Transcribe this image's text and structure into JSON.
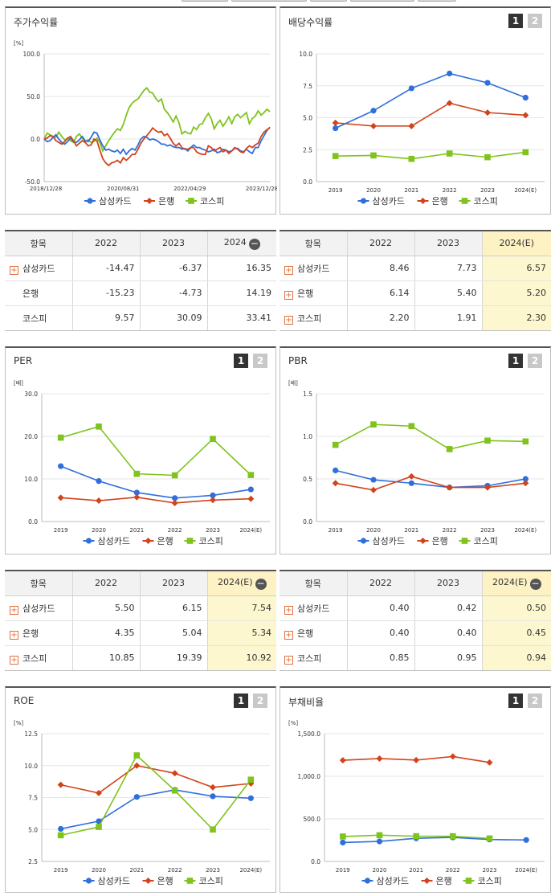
{
  "colors": {
    "samsung": "#2f6fdb",
    "bank": "#d2431b",
    "kospi": "#7fc31c"
  },
  "legend": {
    "samsung": "삼성카드",
    "bank": "은행",
    "kospi": "코스피"
  },
  "pager": {
    "page1": "1",
    "page2": "2"
  },
  "panels": {
    "price": {
      "title": "주가수익률",
      "unit": "[%]"
    },
    "dividend": {
      "title": "배당수익률",
      "unit": ""
    },
    "per": {
      "title": "PER",
      "unit": "[배]"
    },
    "pbr": {
      "title": "PBR",
      "unit": "[배]"
    },
    "roe": {
      "title": "ROE",
      "unit": "[%]"
    },
    "debt": {
      "title": "부채비율",
      "unit": "[%]"
    }
  },
  "tables": {
    "price": {
      "headers": [
        "항목",
        "2022",
        "2023",
        "2024"
      ],
      "minus": "−",
      "highlight": false,
      "rows": [
        {
          "name": "삼성카드",
          "plus": true,
          "values": [
            "-14.47",
            "-6.37",
            "16.35"
          ]
        },
        {
          "name": "은행",
          "plus": false,
          "values": [
            "-15.23",
            "-4.73",
            "14.19"
          ]
        },
        {
          "name": "코스피",
          "plus": false,
          "values": [
            "9.57",
            "30.09",
            "33.41"
          ]
        }
      ]
    },
    "dividend": {
      "headers": [
        "항목",
        "2022",
        "2023",
        "2024(E)"
      ],
      "minus": "",
      "highlight": true,
      "rows": [
        {
          "name": "삼성카드",
          "plus": true,
          "values": [
            "8.46",
            "7.73",
            "6.57"
          ]
        },
        {
          "name": "은행",
          "plus": true,
          "values": [
            "6.14",
            "5.40",
            "5.20"
          ]
        },
        {
          "name": "코스피",
          "plus": true,
          "values": [
            "2.20",
            "1.91",
            "2.30"
          ]
        }
      ]
    },
    "per": {
      "headers": [
        "항목",
        "2022",
        "2023",
        "2024(E)"
      ],
      "minus": "−",
      "highlight": true,
      "rows": [
        {
          "name": "삼성카드",
          "plus": true,
          "values": [
            "5.50",
            "6.15",
            "7.54"
          ]
        },
        {
          "name": "은행",
          "plus": true,
          "values": [
            "4.35",
            "5.04",
            "5.34"
          ]
        },
        {
          "name": "코스피",
          "plus": true,
          "values": [
            "10.85",
            "19.39",
            "10.92"
          ]
        }
      ]
    },
    "pbr": {
      "headers": [
        "항목",
        "2022",
        "2023",
        "2024(E)"
      ],
      "minus": "−",
      "highlight": true,
      "rows": [
        {
          "name": "삼성카드",
          "plus": true,
          "values": [
            "0.40",
            "0.42",
            "0.50"
          ]
        },
        {
          "name": "은행",
          "plus": true,
          "values": [
            "0.40",
            "0.40",
            "0.45"
          ]
        },
        {
          "name": "코스피",
          "plus": true,
          "values": [
            "0.85",
            "0.95",
            "0.94"
          ]
        }
      ]
    }
  },
  "chart_data": [
    {
      "id": "price",
      "type": "line",
      "xlabel": "",
      "ylabel": "[%]",
      "ylim": [
        -50,
        100
      ],
      "yticks": [
        "100.0",
        "50.0",
        "0.0",
        "-50.0"
      ],
      "xticklabels": [
        "2018/12/28",
        "2020/08/31",
        "2022/04/29",
        "2023/12/28"
      ],
      "series": [
        {
          "name": "삼성카드",
          "values": [
            0,
            -3,
            -2,
            2,
            5,
            0,
            -4,
            -6,
            -3,
            1,
            -3,
            -4,
            -1,
            3,
            -2,
            -3,
            2,
            8,
            7,
            -1,
            -8,
            -13,
            -12,
            -14,
            -15,
            -13,
            -17,
            -12,
            -18,
            -14,
            -11,
            -13,
            -7,
            0,
            3,
            2,
            -1,
            0,
            -1,
            -3,
            -6,
            -6,
            -8,
            -7,
            -9,
            -10,
            -10,
            -12,
            -11,
            -14,
            -10,
            -7,
            -10,
            -10,
            -12,
            -13,
            -15,
            -14,
            -12,
            -16,
            -15,
            -12,
            -13,
            -15,
            -14,
            -11,
            -11,
            -14,
            -15,
            -12,
            -15,
            -17,
            -10,
            -10,
            -2,
            4,
            10,
            14
          ]
        },
        {
          "name": "은행",
          "values": [
            0,
            1,
            4,
            3,
            -2,
            -4,
            -6,
            -3,
            1,
            3,
            -2,
            -8,
            -5,
            -2,
            -4,
            -8,
            -7,
            0,
            -2,
            -13,
            -23,
            -28,
            -31,
            -28,
            -27,
            -25,
            -28,
            -22,
            -25,
            -22,
            -18,
            -18,
            -12,
            -5,
            0,
            4,
            8,
            13,
            10,
            8,
            9,
            4,
            6,
            1,
            -5,
            -8,
            -5,
            -10,
            -12,
            -12,
            -10,
            -10,
            -15,
            -17,
            -18,
            -18,
            -8,
            -10,
            -14,
            -12,
            -10,
            -15,
            -13,
            -17,
            -14,
            -10,
            -12,
            -15,
            -16,
            -11,
            -8,
            -10,
            -7,
            -5,
            3,
            8,
            11,
            13
          ]
        },
        {
          "name": "코스피",
          "values": [
            0,
            7,
            5,
            3,
            2,
            8,
            3,
            -1,
            1,
            -2,
            -4,
            3,
            6,
            1,
            -3,
            -1,
            -4,
            -3,
            1,
            -4,
            -14,
            -8,
            -2,
            3,
            8,
            12,
            10,
            17,
            28,
            37,
            42,
            45,
            47,
            52,
            57,
            60,
            55,
            54,
            48,
            44,
            47,
            35,
            31,
            26,
            20,
            27,
            19,
            6,
            9,
            7,
            6,
            14,
            11,
            17,
            18,
            25,
            30,
            24,
            12,
            18,
            22,
            15,
            20,
            26,
            18,
            26,
            29,
            25,
            28,
            31,
            18,
            24,
            27,
            33,
            28,
            31,
            35,
            32
          ]
        }
      ]
    },
    {
      "id": "dividend",
      "type": "line",
      "xlabel": "",
      "ylabel": "",
      "ylim": [
        0,
        10
      ],
      "yticks": [
        "10.0",
        "7.5",
        "5.0",
        "2.5",
        "0.0"
      ],
      "categories": [
        "2019",
        "2020",
        "2021",
        "2022",
        "2023",
        "2024(E)"
      ],
      "series": [
        {
          "name": "삼성카드",
          "values": [
            4.18,
            5.55,
            7.3,
            8.46,
            7.73,
            6.57
          ]
        },
        {
          "name": "은행",
          "values": [
            4.6,
            4.35,
            4.35,
            6.14,
            5.4,
            5.2
          ]
        },
        {
          "name": "코스피",
          "values": [
            2.0,
            2.05,
            1.78,
            2.2,
            1.91,
            2.3
          ]
        }
      ]
    },
    {
      "id": "per",
      "type": "line",
      "xlabel": "",
      "ylabel": "[배]",
      "ylim": [
        0,
        30
      ],
      "yticks": [
        "30.0",
        "20.0",
        "10.0",
        "0.0"
      ],
      "categories": [
        "2019",
        "2020",
        "2021",
        "2022",
        "2023",
        "2024(E)"
      ],
      "series": [
        {
          "name": "삼성카드",
          "values": [
            13.0,
            9.5,
            6.8,
            5.5,
            6.15,
            7.54
          ]
        },
        {
          "name": "은행",
          "values": [
            5.6,
            4.9,
            5.7,
            4.35,
            5.04,
            5.34
          ]
        },
        {
          "name": "코스피",
          "values": [
            19.7,
            22.3,
            11.2,
            10.85,
            19.39,
            10.92
          ]
        }
      ]
    },
    {
      "id": "pbr",
      "type": "line",
      "xlabel": "",
      "ylabel": "[배]",
      "ylim": [
        0,
        1.5
      ],
      "yticks": [
        "1.5",
        "1.0",
        "0.5",
        "0.0"
      ],
      "categories": [
        "2019",
        "2020",
        "2021",
        "2022",
        "2023",
        "2024(E)"
      ],
      "series": [
        {
          "name": "삼성카드",
          "values": [
            0.6,
            0.49,
            0.45,
            0.4,
            0.42,
            0.5
          ]
        },
        {
          "name": "은행",
          "values": [
            0.45,
            0.37,
            0.53,
            0.4,
            0.4,
            0.45
          ]
        },
        {
          "name": "코스피",
          "values": [
            0.9,
            1.14,
            1.12,
            0.85,
            0.95,
            0.94
          ]
        }
      ]
    },
    {
      "id": "roe",
      "type": "line",
      "xlabel": "",
      "ylabel": "[%]",
      "ylim": [
        2.5,
        12.5
      ],
      "yticks": [
        "12.5",
        "10.0",
        "7.5",
        "5.0",
        "2.5"
      ],
      "categories": [
        "2019",
        "2020",
        "2021",
        "2022",
        "2023",
        "2024(E)"
      ],
      "series": [
        {
          "name": "삼성카드",
          "values": [
            5.05,
            5.65,
            7.55,
            8.1,
            7.6,
            7.45
          ]
        },
        {
          "name": "은행",
          "values": [
            8.5,
            7.85,
            10.0,
            9.4,
            8.3,
            8.6
          ]
        },
        {
          "name": "코스피",
          "values": [
            4.55,
            5.2,
            10.8,
            8.05,
            5.0,
            8.9
          ]
        }
      ]
    },
    {
      "id": "debt",
      "type": "line",
      "xlabel": "",
      "ylabel": "[%]",
      "ylim": [
        0,
        1500
      ],
      "yticks": [
        "1,500.0",
        "1,000.0",
        "500.0",
        "0.0"
      ],
      "categories": [
        "2019",
        "2020",
        "2021",
        "2022",
        "2023",
        "2024(E)"
      ],
      "series": [
        {
          "name": "삼성카드",
          "values": [
            222,
            235,
            272,
            282,
            258,
            252
          ]
        },
        {
          "name": "은행",
          "values": [
            1188,
            1208,
            1190,
            1232,
            1162,
            null
          ]
        },
        {
          "name": "코스피",
          "values": [
            293,
            308,
            296,
            296,
            270,
            null
          ]
        }
      ]
    }
  ]
}
